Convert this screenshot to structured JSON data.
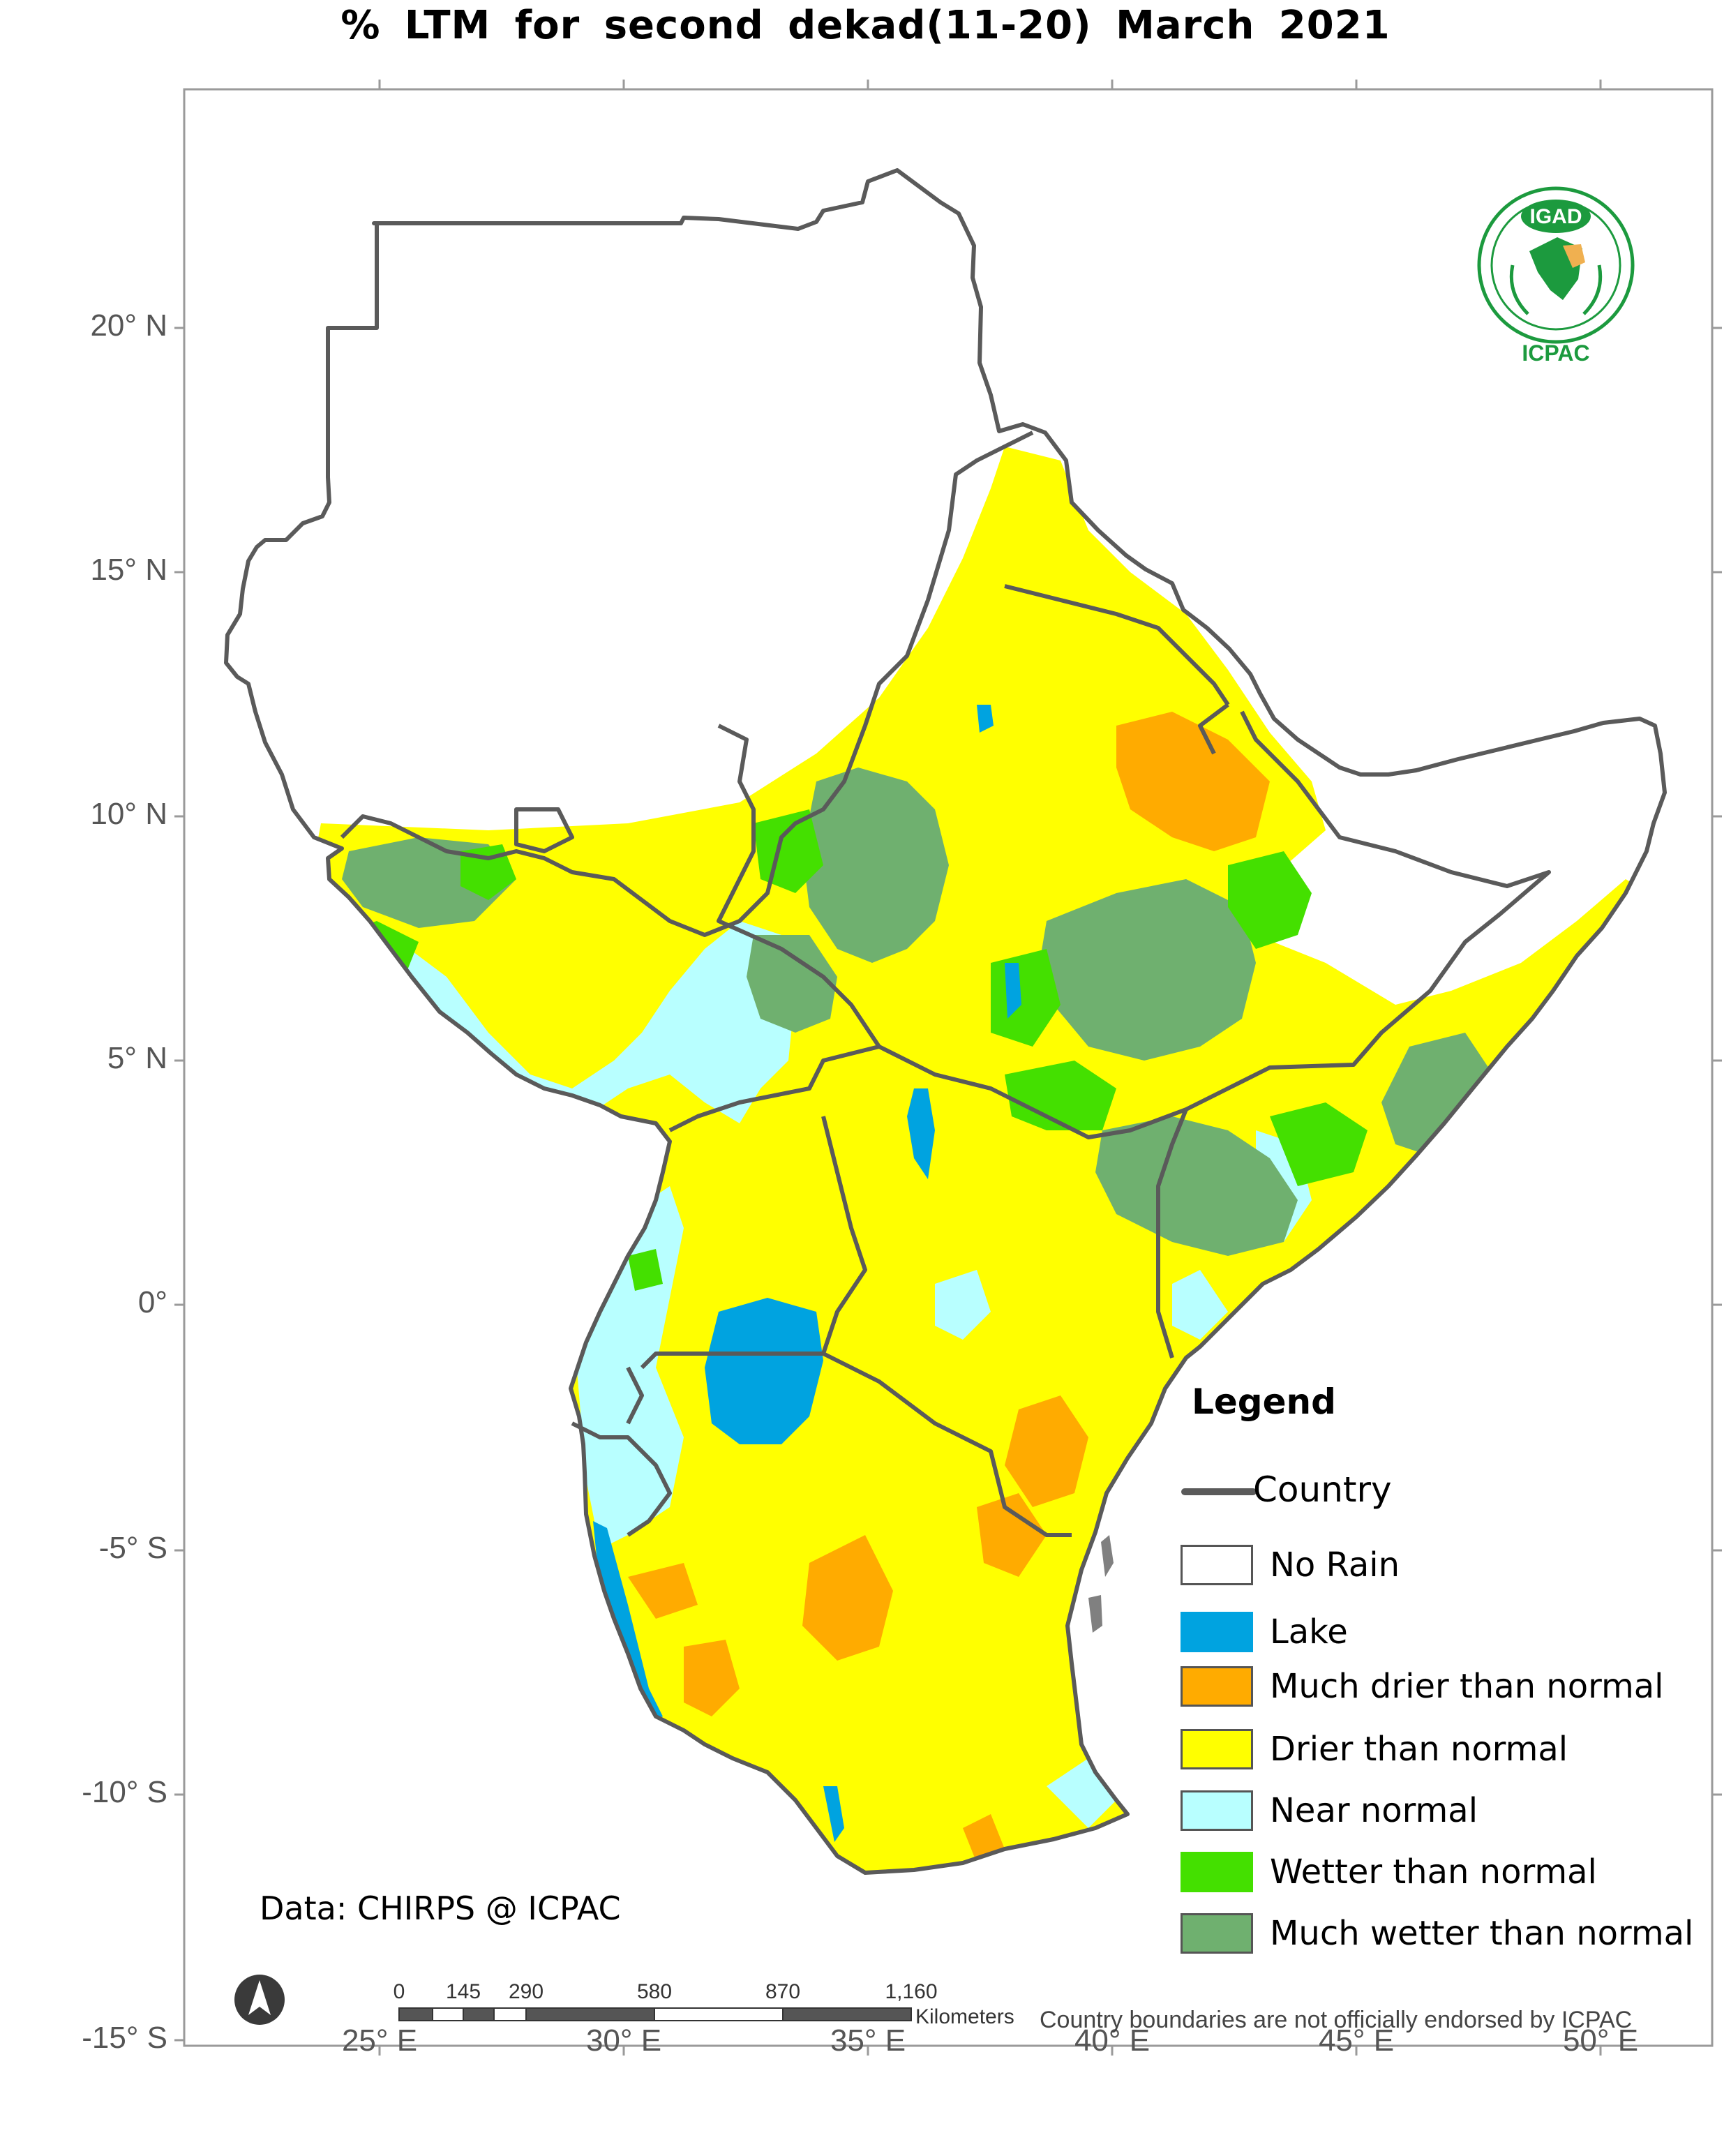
{
  "title": "% LTM  for   second  dekad(11-20)  March 2021",
  "latitude_labels": [
    "20° N",
    "15° N",
    "10° N",
    "5° N",
    "0°",
    "-5° S",
    "-10° S",
    "-15° S"
  ],
  "longitude_labels": [
    "25° E",
    "30° E",
    "35° E",
    "40° E",
    "45° E",
    "50° E"
  ],
  "legend": {
    "title": "Legend",
    "country_label": "Country",
    "items": [
      {
        "label": "No Rain",
        "color": "#ffffff"
      },
      {
        "label": "Lake",
        "color": "#00a3e0"
      },
      {
        "label": "Much drier than normal",
        "color": "#ffab00"
      },
      {
        "label": "Drier than normal",
        "color": "#ffff00"
      },
      {
        "label": "Near normal",
        "color": "#b8ffff"
      },
      {
        "label": "Wetter than normal",
        "color": "#44e000"
      },
      {
        "label": "Much wetter than normal",
        "color": "#6fb06f"
      }
    ]
  },
  "data_credit": "Data: CHIRPS @ ICPAC",
  "disclaimer": "Country boundaries are not officially endorsed by ICPAC",
  "scale_bar": {
    "ticks": [
      "0",
      "145",
      "290",
      "580",
      "870",
      "1,160"
    ],
    "unit": "Kilometers"
  },
  "logo": {
    "top_text": "IGAD",
    "bottom_text": "ICPAC"
  }
}
